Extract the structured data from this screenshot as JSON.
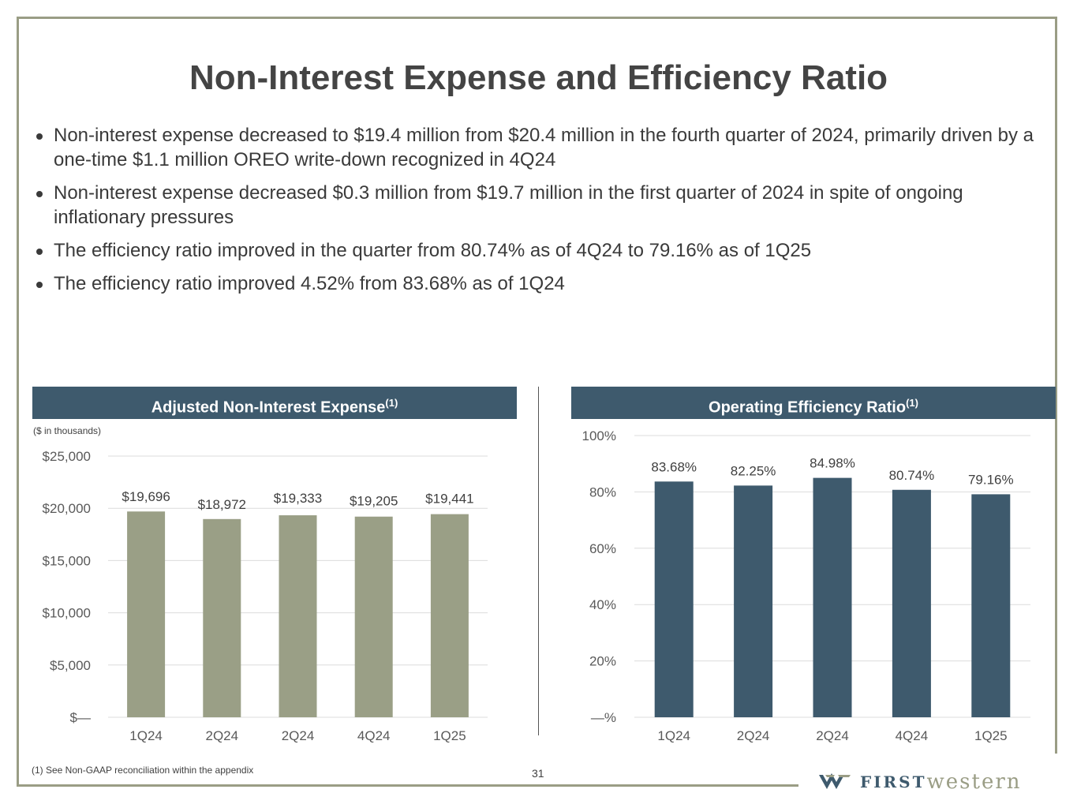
{
  "title": "Non-Interest Expense and Efficiency Ratio",
  "bullets": [
    "Non-interest expense decreased to $19.4 million from $20.4 million in the fourth quarter of 2024, primarily driven by a one-time $1.1 million OREO write-down recognized in 4Q24",
    "Non-interest expense decreased $0.3 million from $19.7 million in the first quarter of 2024 in spite of ongoing inflationary pressures",
    "The efficiency ratio improved in the quarter from 80.74% as of 4Q24 to 79.16% as of 1Q25",
    "The efficiency ratio improved 4.52% from 83.68% as of 1Q24"
  ],
  "left_panel": {
    "header": "Adjusted Non-Interest Expense",
    "header_sup": "(1)",
    "units": "($ in thousands)"
  },
  "right_panel": {
    "header": "Operating Efficiency Ratio",
    "header_sup": "(1)"
  },
  "footnote": "(1)  See Non-GAAP reconciliation within the appendix",
  "page_number": "31",
  "logo": {
    "first": "FIRST",
    "western": "western"
  },
  "colors": {
    "expense_bar": "#9a9f86",
    "efficiency_bar": "#3e5a6d",
    "header_bg": "#3e5a6d"
  },
  "chart_data": [
    {
      "type": "bar",
      "title": "Adjusted Non-Interest Expense",
      "categories": [
        "1Q24",
        "2Q24",
        "2Q24",
        "4Q24",
        "1Q25"
      ],
      "values": [
        19696,
        18972,
        19333,
        19205,
        19441
      ],
      "value_labels": [
        "$19,696",
        "$18,972",
        "$19,333",
        "$19,205",
        "$19,441"
      ],
      "ylim": [
        0,
        25000
      ],
      "yticks": [
        0,
        5000,
        10000,
        15000,
        20000,
        25000
      ],
      "ytick_labels": [
        "$—",
        "$5,000",
        "$10,000",
        "$15,000",
        "$20,000",
        "$25,000"
      ],
      "xlabel": "",
      "ylabel": "",
      "grid": true
    },
    {
      "type": "bar",
      "title": "Operating Efficiency Ratio",
      "categories": [
        "1Q24",
        "2Q24",
        "2Q24",
        "4Q24",
        "1Q25"
      ],
      "values": [
        83.68,
        82.25,
        84.98,
        80.74,
        79.16
      ],
      "value_labels": [
        "83.68%",
        "82.25%",
        "84.98%",
        "80.74%",
        "79.16%"
      ],
      "ylim": [
        0,
        100
      ],
      "yticks": [
        0,
        20,
        40,
        60,
        80,
        100
      ],
      "ytick_labels": [
        "—%",
        "20%",
        "40%",
        "60%",
        "80%",
        "100%"
      ],
      "xlabel": "",
      "ylabel": "",
      "grid": true
    }
  ]
}
